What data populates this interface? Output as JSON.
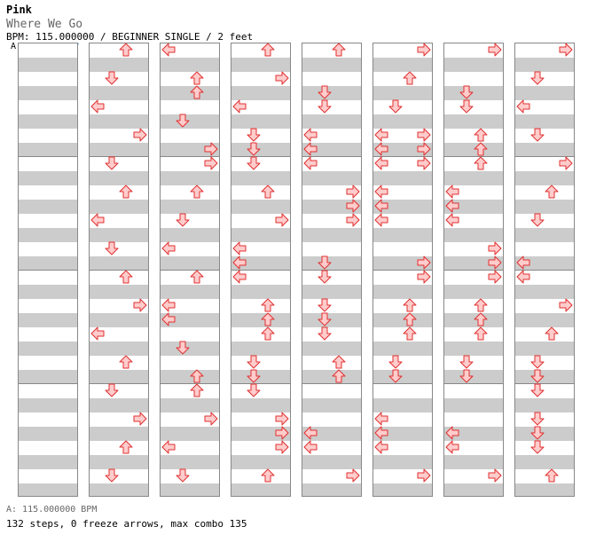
{
  "header": {
    "title": "Pink",
    "subtitle": "Where We Go",
    "info": "BPM: 115.000000 / BEGINNER SINGLE / 2 feet",
    "marker": "A"
  },
  "footer": {
    "bpm_line": "A: 115.000000 BPM",
    "stats": "132 steps, 0 freeze arrows, max combo 135"
  },
  "colors": {
    "arrow_fill": "#ffcccc",
    "arrow_stroke": "#e03030",
    "band": "#cccccc",
    "border": "#888888"
  },
  "chart": {
    "columns": 8,
    "measures_per_column": 4,
    "steps_per_measure": 8,
    "arrows": [
      [
        [
          0,
          2,
          "U"
        ],
        [
          2,
          1,
          "D"
        ],
        [
          4,
          0,
          "L"
        ],
        [
          6,
          3,
          "R"
        ],
        [
          8,
          1,
          "D"
        ],
        [
          10,
          2,
          "U"
        ],
        [
          12,
          0,
          "L"
        ],
        [
          14,
          1,
          "D"
        ],
        [
          16,
          2,
          "U"
        ],
        [
          18,
          3,
          "R"
        ],
        [
          20,
          0,
          "L"
        ],
        [
          22,
          2,
          "U"
        ],
        [
          24,
          1,
          "D"
        ],
        [
          26,
          3,
          "R"
        ],
        [
          28,
          2,
          "U"
        ],
        [
          30,
          1,
          "D"
        ]
      ],
      [
        [
          0,
          0,
          "L"
        ],
        [
          2,
          2,
          "U"
        ],
        [
          3,
          2,
          "U"
        ],
        [
          5,
          1,
          "D"
        ],
        [
          7,
          3,
          "R"
        ],
        [
          8,
          3,
          "R"
        ],
        [
          10,
          2,
          "U"
        ],
        [
          12,
          1,
          "D"
        ],
        [
          14,
          0,
          "L"
        ],
        [
          16,
          2,
          "U"
        ],
        [
          18,
          0,
          "L"
        ],
        [
          19,
          0,
          "L"
        ],
        [
          21,
          1,
          "D"
        ],
        [
          23,
          2,
          "U"
        ],
        [
          24,
          2,
          "U"
        ],
        [
          26,
          3,
          "R"
        ],
        [
          28,
          0,
          "L"
        ],
        [
          30,
          1,
          "D"
        ]
      ],
      [
        [
          0,
          2,
          "U"
        ],
        [
          2,
          3,
          "R"
        ],
        [
          4,
          0,
          "L"
        ],
        [
          6,
          1,
          "D"
        ],
        [
          7,
          1,
          "D"
        ],
        [
          8,
          1,
          "D"
        ],
        [
          10,
          2,
          "U"
        ],
        [
          12,
          3,
          "R"
        ],
        [
          14,
          0,
          "L"
        ],
        [
          15,
          0,
          "L"
        ],
        [
          16,
          0,
          "L"
        ],
        [
          18,
          2,
          "U"
        ],
        [
          19,
          2,
          "U"
        ],
        [
          20,
          2,
          "U"
        ],
        [
          22,
          1,
          "D"
        ],
        [
          23,
          1,
          "D"
        ],
        [
          24,
          1,
          "D"
        ],
        [
          26,
          3,
          "R"
        ],
        [
          27,
          3,
          "R"
        ],
        [
          28,
          3,
          "R"
        ],
        [
          30,
          2,
          "U"
        ]
      ],
      [
        [
          0,
          2,
          "U"
        ],
        [
          3,
          1,
          "D"
        ],
        [
          4,
          1,
          "D"
        ],
        [
          6,
          0,
          "L"
        ],
        [
          7,
          0,
          "L"
        ],
        [
          8,
          0,
          "L"
        ],
        [
          10,
          3,
          "R"
        ],
        [
          11,
          3,
          "R"
        ],
        [
          12,
          3,
          "R"
        ],
        [
          15,
          1,
          "D"
        ],
        [
          16,
          1,
          "D"
        ],
        [
          18,
          1,
          "D"
        ],
        [
          19,
          1,
          "D"
        ],
        [
          20,
          1,
          "D"
        ],
        [
          22,
          2,
          "U"
        ],
        [
          23,
          2,
          "U"
        ],
        [
          27,
          0,
          "L"
        ],
        [
          28,
          0,
          "L"
        ],
        [
          30,
          3,
          "R"
        ]
      ],
      [
        [
          0,
          3,
          "R"
        ],
        [
          2,
          2,
          "U"
        ],
        [
          4,
          1,
          "D"
        ],
        [
          6,
          0,
          "L"
        ],
        [
          6,
          3,
          "R"
        ],
        [
          7,
          0,
          "L"
        ],
        [
          7,
          3,
          "R"
        ],
        [
          8,
          0,
          "L"
        ],
        [
          8,
          3,
          "R"
        ],
        [
          10,
          0,
          "L"
        ],
        [
          11,
          0,
          "L"
        ],
        [
          12,
          0,
          "L"
        ],
        [
          15,
          3,
          "R"
        ],
        [
          16,
          3,
          "R"
        ],
        [
          18,
          2,
          "U"
        ],
        [
          19,
          2,
          "U"
        ],
        [
          20,
          2,
          "U"
        ],
        [
          22,
          1,
          "D"
        ],
        [
          23,
          1,
          "D"
        ],
        [
          26,
          0,
          "L"
        ],
        [
          27,
          0,
          "L"
        ],
        [
          28,
          0,
          "L"
        ],
        [
          30,
          3,
          "R"
        ]
      ],
      [
        [
          0,
          3,
          "R"
        ],
        [
          3,
          1,
          "D"
        ],
        [
          4,
          1,
          "D"
        ],
        [
          6,
          2,
          "U"
        ],
        [
          7,
          2,
          "U"
        ],
        [
          8,
          2,
          "U"
        ],
        [
          10,
          0,
          "L"
        ],
        [
          11,
          0,
          "L"
        ],
        [
          12,
          0,
          "L"
        ],
        [
          14,
          3,
          "R"
        ],
        [
          15,
          3,
          "R"
        ],
        [
          16,
          3,
          "R"
        ],
        [
          18,
          2,
          "U"
        ],
        [
          19,
          2,
          "U"
        ],
        [
          20,
          2,
          "U"
        ],
        [
          22,
          1,
          "D"
        ],
        [
          23,
          1,
          "D"
        ],
        [
          27,
          0,
          "L"
        ],
        [
          28,
          0,
          "L"
        ],
        [
          30,
          3,
          "R"
        ]
      ],
      [
        [
          0,
          3,
          "R"
        ],
        [
          2,
          1,
          "D"
        ],
        [
          4,
          0,
          "L"
        ],
        [
          6,
          1,
          "D"
        ],
        [
          8,
          3,
          "R"
        ],
        [
          10,
          2,
          "U"
        ],
        [
          12,
          1,
          "D"
        ],
        [
          15,
          0,
          "L"
        ],
        [
          16,
          0,
          "L"
        ],
        [
          18,
          3,
          "R"
        ],
        [
          20,
          2,
          "U"
        ],
        [
          22,
          1,
          "D"
        ],
        [
          23,
          1,
          "D"
        ],
        [
          24,
          1,
          "D"
        ],
        [
          26,
          1,
          "D"
        ],
        [
          27,
          1,
          "D"
        ],
        [
          28,
          1,
          "D"
        ],
        [
          30,
          2,
          "U"
        ]
      ]
    ]
  }
}
